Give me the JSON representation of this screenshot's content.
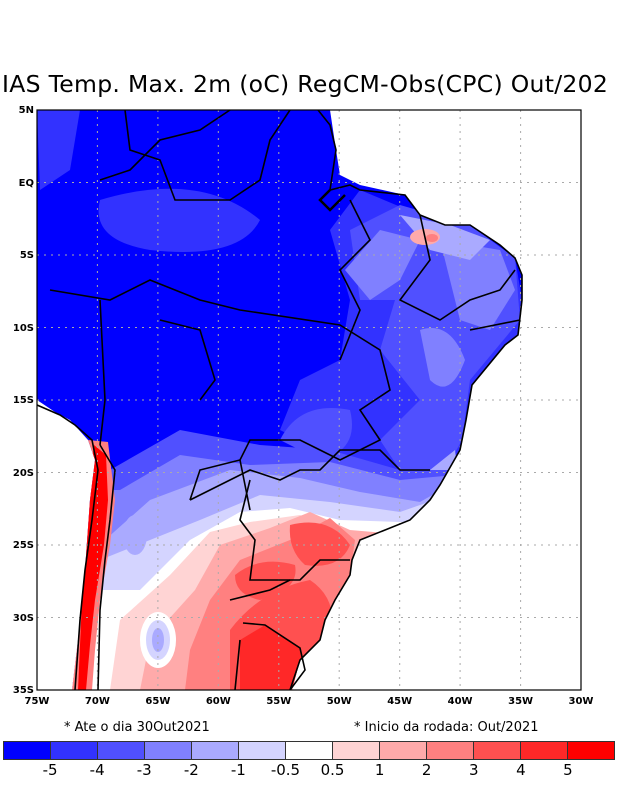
{
  "title": "IAS Temp. Max. 2m (oC) RegCM-Obs(CPC) Out/202",
  "footnotes": {
    "left": "* Ate o dia 30Out2021",
    "right": "* Inicio da rodada: Out/2021"
  },
  "axes": {
    "lat_labels": [
      "5N",
      "EQ",
      "5S",
      "10S",
      "15S",
      "20S",
      "25S",
      "30S",
      "35S"
    ],
    "lon_labels": [
      "75W",
      "70W",
      "65W",
      "60W",
      "55W",
      "50W",
      "45W",
      "40W",
      "35W",
      "30W"
    ]
  },
  "legend": {
    "colors": [
      "#0000ff",
      "#3232ff",
      "#5050ff",
      "#8080ff",
      "#aaaaff",
      "#d4d4ff",
      "#ffffff",
      "#ffd4d4",
      "#ffaaaa",
      "#ff8080",
      "#ff5050",
      "#ff2828",
      "#ff0000"
    ],
    "labels": [
      "-5",
      "-4",
      "-3",
      "-2",
      "-1",
      "-0.5",
      "0.5",
      "1",
      "2",
      "3",
      "4",
      "5"
    ]
  }
}
